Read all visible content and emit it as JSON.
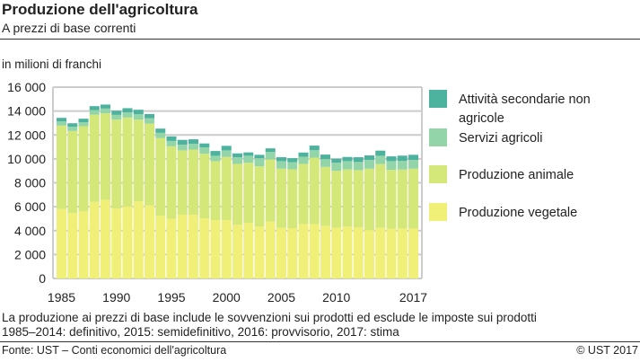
{
  "header": {
    "title": "Produzione dell'agricoltura",
    "subtitle": "A prezzi di base correnti"
  },
  "footer": {
    "note_line1": "La produzione ai prezzi di base include le sovvenzioni sui prodotti ed esclude le imposte sui prodotti",
    "note_line2": "1985–2014: definitivo, 2015: semidefinitivo, 2016: provvisorio, 2017: stima",
    "source": "Fonte: UST – Conti economici dell'agricoltura",
    "copyright": "© UST  2017"
  },
  "chart_data": {
    "type": "bar",
    "stacked": true,
    "ylabel": "in milioni di franchi",
    "ylim": [
      0,
      16000
    ],
    "yticks": [
      0,
      2000,
      4000,
      6000,
      8000,
      10000,
      12000,
      14000,
      16000
    ],
    "ytick_labels": [
      "0",
      "2 000",
      "4 000",
      "6 000",
      "8 000",
      "10 000",
      "12 000",
      "14 000",
      "16 000"
    ],
    "xtick_labels": [
      "1985",
      "1990",
      "1995",
      "2000",
      "2005",
      "2010",
      "2017"
    ],
    "xtick_years": [
      1985,
      1990,
      1995,
      2000,
      2005,
      2010,
      2017
    ],
    "grid": true,
    "legend_position": "right",
    "categories": [
      1985,
      1986,
      1987,
      1988,
      1989,
      1990,
      1991,
      1992,
      1993,
      1994,
      1995,
      1996,
      1997,
      1998,
      1999,
      2000,
      2001,
      2002,
      2003,
      2004,
      2005,
      2006,
      2007,
      2008,
      2009,
      2010,
      2011,
      2012,
      2013,
      2014,
      2015,
      2016,
      2017
    ],
    "series": [
      {
        "name": "Produzione vegetale",
        "color": "#f0ef78",
        "values": [
          5800,
          5480,
          5630,
          6400,
          6580,
          5850,
          6030,
          6450,
          6100,
          5250,
          5000,
          5330,
          5330,
          5030,
          4880,
          4880,
          4480,
          4650,
          4350,
          4750,
          4230,
          4200,
          4550,
          4550,
          4380,
          4250,
          4330,
          4280,
          4050,
          4230,
          4150,
          4180,
          4180
        ]
      },
      {
        "name": "Produzione animale",
        "color": "#d4e87a",
        "values": [
          6980,
          6850,
          7100,
          7300,
          7230,
          7430,
          7430,
          6830,
          6850,
          6500,
          6050,
          5380,
          5450,
          5400,
          4930,
          5280,
          5100,
          5030,
          5030,
          5200,
          4950,
          4930,
          5030,
          5550,
          4950,
          4750,
          4780,
          4780,
          5130,
          5330,
          4930,
          4930,
          5000
        ]
      },
      {
        "name": "Servizi agricoli",
        "color": "#93d5a8",
        "values": [
          350,
          350,
          330,
          380,
          400,
          400,
          430,
          450,
          450,
          430,
          450,
          480,
          480,
          530,
          450,
          550,
          550,
          580,
          680,
          630,
          630,
          600,
          600,
          630,
          650,
          680,
          700,
          680,
          730,
          700,
          730,
          730,
          730
        ]
      },
      {
        "name": "Attività secondarie non agricole",
        "legend_lines": [
          "Attività secondarie non",
          "agricole"
        ],
        "color": "#4db39e",
        "values": [
          300,
          300,
          300,
          330,
          330,
          350,
          350,
          380,
          350,
          350,
          380,
          400,
          380,
          330,
          400,
          380,
          330,
          280,
          280,
          300,
          330,
          330,
          350,
          380,
          380,
          330,
          350,
          400,
          380,
          430,
          400,
          430,
          430
        ]
      }
    ]
  }
}
